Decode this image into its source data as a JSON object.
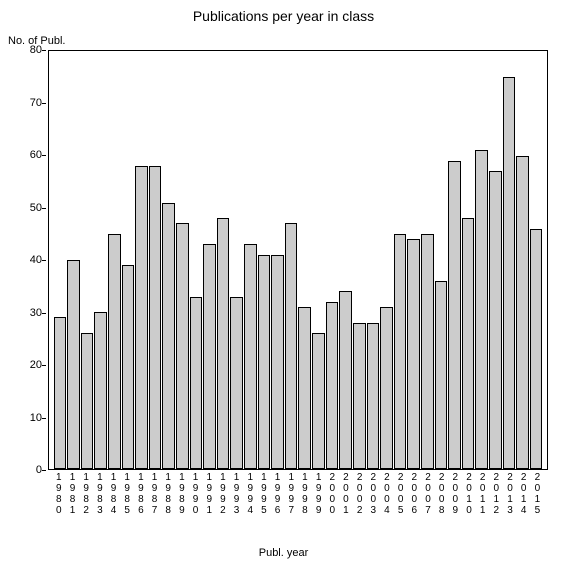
{
  "chart": {
    "type": "bar",
    "title": "Publications per year in class",
    "title_fontsize": 14,
    "y_axis_label": "No. of Publ.",
    "x_axis_label": "Publ. year",
    "label_fontsize": 11,
    "background_color": "#ffffff",
    "plot_border_color": "#000000",
    "bar_fill_color": "#cccccc",
    "bar_border_color": "#000000",
    "ylim": [
      0,
      80
    ],
    "ytick_step": 10,
    "yticks": [
      0,
      10,
      20,
      30,
      40,
      50,
      60,
      70,
      80
    ],
    "categories": [
      "1980",
      "1981",
      "1982",
      "1983",
      "1984",
      "1985",
      "1986",
      "1987",
      "1988",
      "1989",
      "1990",
      "1991",
      "1992",
      "1993",
      "1994",
      "1995",
      "1996",
      "1997",
      "1998",
      "1999",
      "2000",
      "2001",
      "2002",
      "2003",
      "2004",
      "2005",
      "2006",
      "2007",
      "2008",
      "2009",
      "2010",
      "2011",
      "2012",
      "2013",
      "2014",
      "2015"
    ],
    "values": [
      29,
      40,
      26,
      30,
      45,
      39,
      58,
      58,
      51,
      47,
      33,
      43,
      48,
      33,
      43,
      41,
      41,
      47,
      31,
      26,
      32,
      34,
      28,
      28,
      31,
      45,
      44,
      45,
      36,
      59,
      48,
      61,
      57,
      75,
      60,
      46
    ]
  }
}
